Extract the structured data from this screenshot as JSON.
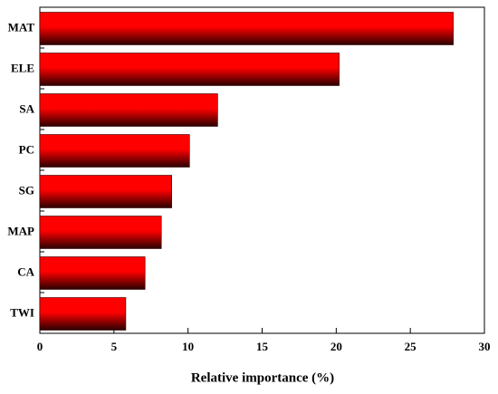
{
  "chart_data": {
    "type": "bar",
    "orientation": "horizontal",
    "categories": [
      "MAT",
      "ELE",
      "SA",
      "PC",
      "SG",
      "MAP",
      "CA",
      "TWI"
    ],
    "values": [
      27.9,
      20.2,
      12.0,
      10.1,
      8.9,
      8.2,
      7.1,
      5.8
    ],
    "color": "#ff0000",
    "xlabel": "Relative importance (%)",
    "xlim": [
      0,
      30
    ],
    "xticks": [
      0,
      5,
      10,
      15,
      20,
      25,
      30
    ]
  }
}
